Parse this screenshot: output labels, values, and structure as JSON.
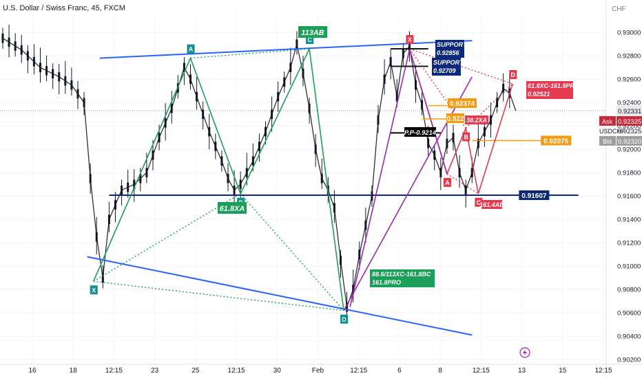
{
  "header": {
    "title": "U.S. Dollar / Swiss Franc, 45, FXCM"
  },
  "chart_data": {
    "type": "candlestick",
    "symbol": "USDCHF",
    "currency": "CHF",
    "interval": "45",
    "x_tick_labels": [
      "16",
      "18",
      "12:15",
      "23",
      "25",
      "12:15",
      "30",
      "Feb",
      "12:15",
      "6",
      "8",
      "12:15",
      "13",
      "15",
      "12:15"
    ],
    "y_tick_labels": [
      "0.93000",
      "0.92800",
      "0.92600",
      "0.92400",
      "0.92200",
      "0.92000",
      "0.91800",
      "0.91600",
      "0.91400",
      "0.91200",
      "0.91000",
      "0.90800",
      "0.90600",
      "0.90400",
      "0.90200"
    ],
    "ylim": [
      0.9016,
      0.9316
    ],
    "quotes": {
      "last": "0.92331",
      "ask_label": "Ask",
      "ask": "0.92325",
      "bid_label": "Bid",
      "bid": "0.92320",
      "symbol_label": "USDCHF",
      "last_value": 0.92331
    },
    "price_series": [
      [
        0,
        0.9295
      ],
      [
        3,
        0.9285
      ],
      [
        6,
        0.927
      ],
      [
        9,
        0.9262
      ],
      [
        11,
        0.9255
      ],
      [
        13,
        0.924
      ],
      [
        14,
        0.9175
      ],
      [
        15,
        0.9125
      ],
      [
        16,
        0.909
      ],
      [
        17,
        0.914
      ],
      [
        19,
        0.9165
      ],
      [
        21,
        0.917
      ],
      [
        23,
        0.918
      ],
      [
        25,
        0.921
      ],
      [
        27,
        0.9235
      ],
      [
        29,
        0.927
      ],
      [
        30,
        0.926
      ],
      [
        31,
        0.9245
      ],
      [
        32,
        0.923
      ],
      [
        33,
        0.9215
      ],
      [
        35,
        0.919
      ],
      [
        36,
        0.9175
      ],
      [
        37,
        0.9165
      ],
      [
        38,
        0.917
      ],
      [
        40,
        0.919
      ],
      [
        42,
        0.9215
      ],
      [
        44,
        0.9245
      ],
      [
        46,
        0.927
      ],
      [
        47,
        0.929
      ],
      [
        48,
        0.9265
      ],
      [
        49,
        0.9235
      ],
      [
        50,
        0.92
      ],
      [
        51,
        0.9175
      ],
      [
        52,
        0.9165
      ],
      [
        53,
        0.915
      ],
      [
        54,
        0.9105
      ],
      [
        55,
        0.9065
      ],
      [
        56,
        0.908
      ],
      [
        57,
        0.911
      ],
      [
        58,
        0.9135
      ],
      [
        59,
        0.916
      ],
      [
        60,
        0.9225
      ],
      [
        61,
        0.926
      ],
      [
        62,
        0.9275
      ],
      [
        63,
        0.9245
      ],
      [
        64,
        0.9282
      ],
      [
        65,
        0.9288
      ],
      [
        66,
        0.9255
      ],
      [
        67,
        0.9238
      ],
      [
        68,
        0.9205
      ],
      [
        69,
        0.9195
      ],
      [
        70,
        0.918
      ],
      [
        71,
        0.9205
      ],
      [
        72,
        0.921
      ],
      [
        73,
        0.918
      ],
      [
        74,
        0.9165
      ],
      [
        75,
        0.918
      ],
      [
        76,
        0.9205
      ],
      [
        77,
        0.9215
      ],
      [
        78,
        0.9225
      ],
      [
        79,
        0.924
      ],
      [
        80,
        0.9252
      ],
      [
        81,
        0.9248
      ],
      [
        82,
        0.9233
      ]
    ],
    "horizontal_levels": [
      {
        "label": "0.91607",
        "value": 0.91607,
        "color": "#0d2a7a"
      },
      {
        "label": "0.92075",
        "value": 0.92075,
        "color": "#f59b12"
      }
    ],
    "trendlines": [
      {
        "from": [
          15.5,
          0.9278
        ],
        "to": [
          75,
          0.9293
        ],
        "color": "#2962ff"
      },
      {
        "from": [
          13.5,
          0.9108
        ],
        "to": [
          75,
          0.9041
        ],
        "color": "#2962ff"
      }
    ],
    "harmonic_patterns": [
      {
        "color": "#1b9e57",
        "points": [
          {
            "name": "X",
            "x": 14.5,
            "y": 0.9087
          },
          {
            "name": "A",
            "x": 30.0,
            "y": 0.9278
          },
          {
            "name": "B",
            "x": 38.0,
            "y": 0.9162
          },
          {
            "name": "C",
            "x": 49.0,
            "y": 0.9286
          },
          {
            "name": "D",
            "x": 54.5,
            "y": 0.9062
          }
        ],
        "labels": [
          "113AB",
          "61.8XA",
          "88.6/113XC-161.8BC",
          "161.8PRO"
        ]
      },
      {
        "color": "#e53950",
        "points": [
          {
            "name": "X",
            "x": 65.0,
            "y": 0.9286
          },
          {
            "name": "A",
            "x": 71.0,
            "y": 0.9179
          },
          {
            "name": "B",
            "x": 74.0,
            "y": 0.9218
          },
          {
            "name": "C",
            "x": 76.0,
            "y": 0.9162
          },
          {
            "name": "D",
            "x": 81.5,
            "y": 0.9256
          }
        ],
        "labels": [
          "38.2XA",
          "161.4AB",
          "61.8XC-161.8PRO",
          "0.92521"
        ]
      }
    ],
    "annotations": [
      {
        "text": "SUPPORT",
        "value": "0.92856"
      },
      {
        "text": "SUPPORT",
        "value": "0.92709"
      },
      {
        "text": "P.P-0.9214"
      },
      {
        "text": "0.92374"
      },
      {
        "text": "0.922"
      }
    ]
  },
  "colors": {
    "candle": "#131722",
    "green_pattern": "#1b9e57",
    "red_pattern": "#e53950",
    "purple": "#9c27b0",
    "navy": "#0d2a7a",
    "orange": "#f59b12",
    "blue_trend": "#2962ff"
  }
}
